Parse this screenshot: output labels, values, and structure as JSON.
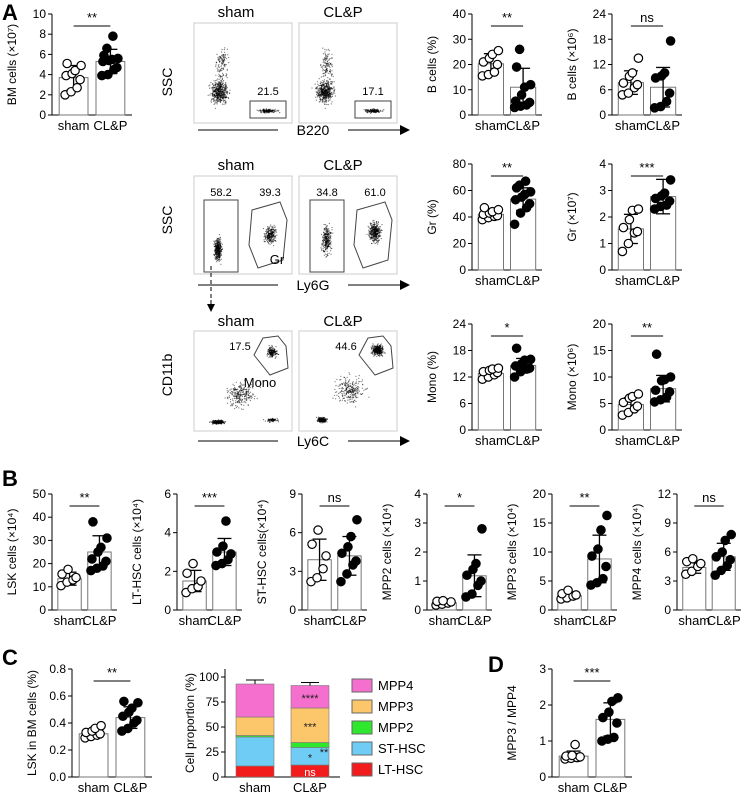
{
  "panels": {
    "A": "A",
    "B": "B",
    "C": "C",
    "D": "D"
  },
  "groups": [
    "sham",
    "CL&P"
  ],
  "flow": {
    "row1": {
      "ylabel": "SSC",
      "xlabel": "B220",
      "plots": [
        {
          "title": "sham",
          "gate_value": "21.5"
        },
        {
          "title": "CL&P",
          "gate_value": "17.1"
        }
      ]
    },
    "row2": {
      "ylabel": "SSC",
      "xlabel": "Ly6G",
      "gate_label": "Gr",
      "plots": [
        {
          "title": "sham",
          "left_value": "58.2",
          "right_value": "39.3"
        },
        {
          "title": "CL&P",
          "left_value": "34.8",
          "right_value": "61.0"
        }
      ]
    },
    "row3": {
      "ylabel": "CD11b",
      "xlabel": "Ly6C",
      "gate_label": "Mono",
      "plots": [
        {
          "title": "sham",
          "gate_value": "17.5"
        },
        {
          "title": "CL&P",
          "gate_value": "44.6"
        }
      ]
    }
  },
  "chart_data": [
    {
      "id": "bm_cells",
      "panel": "A",
      "type": "bar",
      "ylabel": "BM cells (×10⁷)",
      "ylim": [
        0,
        10
      ],
      "yticks": [
        0,
        2,
        4,
        6,
        8,
        10
      ],
      "categories": [
        "sham",
        "CL&P"
      ],
      "means": [
        3.7,
        5.3
      ],
      "sd": [
        1.2,
        1.2
      ],
      "sig": "**",
      "points": [
        [
          2.0,
          2.3,
          2.7,
          3.5,
          3.9,
          4.1,
          4.4,
          4.9,
          5.1
        ],
        [
          3.9,
          4.0,
          4.5,
          4.7,
          5.3,
          5.4,
          5.5,
          5.6,
          5.9,
          6.6,
          7.8
        ]
      ]
    },
    {
      "id": "b_cells_pct",
      "panel": "A",
      "type": "bar",
      "ylabel": "B cells (%)",
      "ylim": [
        0,
        40
      ],
      "yticks": [
        0,
        10,
        20,
        30,
        40
      ],
      "categories": [
        "sham",
        "CL&P"
      ],
      "means": [
        20.3,
        11.0
      ],
      "sd": [
        4.0,
        7.5
      ],
      "sig": "**",
      "points": [
        [
          15.5,
          16,
          17,
          20,
          21,
          22.5,
          24,
          25.5
        ],
        [
          3,
          3.5,
          4,
          5,
          5.5,
          8,
          11,
          12,
          19,
          26
        ]
      ]
    },
    {
      "id": "b_cells_abs",
      "panel": "A",
      "type": "bar",
      "ylabel": "B cells (×10⁶)",
      "ylim": [
        0,
        24
      ],
      "yticks": [
        0,
        6,
        12,
        18,
        24
      ],
      "categories": [
        "sham",
        "CL&P"
      ],
      "means": [
        7.7,
        6.6
      ],
      "sd": [
        2.8,
        4.7
      ],
      "sig": "ns",
      "points": [
        [
          4.8,
          5.2,
          6.5,
          7.2,
          7.6,
          9.2,
          10.0,
          13.5
        ],
        [
          1.7,
          2.0,
          3.2,
          5.2,
          8.8,
          9.3,
          10.0,
          17.6
        ]
      ]
    },
    {
      "id": "gr_pct",
      "panel": "A",
      "type": "bar",
      "ylabel": "Gr (%)",
      "ylim": [
        0,
        80
      ],
      "yticks": [
        0,
        20,
        40,
        60,
        80
      ],
      "categories": [
        "sham",
        "CL&P"
      ],
      "means": [
        42,
        53.5
      ],
      "sd": [
        2.5,
        8.5
      ],
      "sig": "**",
      "points": [
        [
          38,
          39.5,
          40.5,
          41,
          42,
          43,
          44,
          45.5,
          47
        ],
        [
          34.5,
          43,
          47,
          50,
          53,
          55,
          57,
          59,
          62,
          64,
          67
        ]
      ]
    },
    {
      "id": "gr_abs",
      "panel": "A",
      "type": "bar",
      "ylabel": "Gr (×10⁷)",
      "ylim": [
        0,
        4
      ],
      "yticks": [
        0,
        1,
        2,
        3,
        4
      ],
      "categories": [
        "sham",
        "CL&P"
      ],
      "means": [
        1.55,
        2.77
      ],
      "sd": [
        0.55,
        0.65
      ],
      "sig": "***",
      "points": [
        [
          0.7,
          1.0,
          1.4,
          1.45,
          1.6,
          1.9,
          2.25,
          2.3
        ],
        [
          2.3,
          2.4,
          2.45,
          2.6,
          2.7,
          2.8,
          2.9,
          3.4
        ]
      ]
    },
    {
      "id": "mono_pct",
      "panel": "A",
      "type": "bar",
      "ylabel": "Mono (%)",
      "ylim": [
        0,
        24
      ],
      "yticks": [
        0,
        6,
        12,
        18,
        24
      ],
      "categories": [
        "sham",
        "CL&P"
      ],
      "means": [
        12.8,
        14.6
      ],
      "sd": [
        0.8,
        1.6
      ],
      "sig": "*",
      "points": [
        [
          11.5,
          12,
          12.5,
          13,
          13.2,
          13.5,
          13.8,
          14
        ],
        [
          12,
          13.2,
          13.8,
          14,
          14.5,
          15,
          15.8,
          16,
          18.5
        ]
      ]
    },
    {
      "id": "mono_abs",
      "panel": "A",
      "type": "bar",
      "ylabel": "Mono (×10⁶)",
      "ylim": [
        0,
        20
      ],
      "yticks": [
        0,
        5,
        10,
        15,
        20
      ],
      "categories": [
        "sham",
        "CL&P"
      ],
      "means": [
        4.8,
        7.8
      ],
      "sd": [
        1.3,
        2.5
      ],
      "sig": "**",
      "points": [
        [
          2.8,
          3.3,
          4.0,
          4.5,
          5.2,
          6.0,
          6.3,
          6.8
        ],
        [
          5.3,
          5.7,
          6.2,
          7.2,
          7.5,
          9.3,
          9.5,
          10.0,
          14.3
        ]
      ]
    },
    {
      "id": "lsk_cells",
      "panel": "B",
      "type": "bar",
      "ylabel": "LSK cells (×10⁴)",
      "ylim": [
        0,
        50
      ],
      "yticks": [
        0,
        10,
        20,
        30,
        40,
        50
      ],
      "categories": [
        "sham",
        "CL&P"
      ],
      "means": [
        13.5,
        25.0
      ],
      "sd": [
        2.8,
        7.0
      ],
      "sig": "**",
      "points": [
        [
          10.5,
          12,
          13,
          14,
          15.5,
          17.5
        ],
        [
          17,
          18,
          19,
          21,
          22,
          25,
          27,
          31,
          38
        ]
      ]
    },
    {
      "id": "lthsc_cells",
      "panel": "B",
      "type": "bar",
      "ylabel": "LT-HSC cells (×10⁴)",
      "ylim": [
        0,
        6
      ],
      "yticks": [
        0,
        2,
        4,
        6
      ],
      "categories": [
        "sham",
        "CL&P"
      ],
      "means": [
        1.5,
        3.0
      ],
      "sd": [
        0.55,
        0.7
      ],
      "sig": "***",
      "points": [
        [
          0.9,
          1.1,
          1.2,
          1.5,
          1.9,
          2.4
        ],
        [
          2.3,
          2.4,
          2.6,
          2.9,
          3.0,
          3.3,
          4.6
        ]
      ]
    },
    {
      "id": "sthsc_cells",
      "panel": "B",
      "type": "bar",
      "ylabel": "ST-HSC cells(×10⁴)",
      "ylim": [
        0,
        9
      ],
      "yticks": [
        0,
        3,
        6,
        9
      ],
      "categories": [
        "sham",
        "CL&P"
      ],
      "means": [
        3.9,
        4.2
      ],
      "sd": [
        1.6,
        1.5
      ],
      "sig": "ns",
      "points": [
        [
          2.2,
          2.5,
          3.2,
          4.2,
          5.1,
          6.2
        ],
        [
          2.2,
          2.8,
          3.5,
          3.8,
          4.4,
          4.9,
          5.7,
          7.0
        ]
      ]
    },
    {
      "id": "mpp2_cells",
      "panel": "B",
      "type": "bar",
      "ylabel": "MPP2 cells (×10⁴)",
      "ylim": [
        0,
        4
      ],
      "yticks": [
        0,
        1,
        2,
        3,
        4
      ],
      "categories": [
        "sham",
        "CL&P"
      ],
      "means": [
        0.25,
        1.18
      ],
      "sd": [
        0.06,
        0.72
      ],
      "sig": "*",
      "points": [
        [
          0.17,
          0.2,
          0.24,
          0.28,
          0.3,
          0.32
        ],
        [
          0.45,
          0.55,
          0.85,
          1.0,
          1.2,
          1.4,
          1.6,
          2.8
        ]
      ]
    },
    {
      "id": "mpp3_cells",
      "panel": "B",
      "type": "bar",
      "ylabel": "MPP3 cells (×10⁴)",
      "ylim": [
        0,
        20
      ],
      "yticks": [
        0,
        5,
        10,
        15,
        20
      ],
      "categories": [
        "sham",
        "CL&P"
      ],
      "means": [
        2.5,
        8.8
      ],
      "sd": [
        0.5,
        4.1
      ],
      "sig": "**",
      "points": [
        [
          1.9,
          2.1,
          2.4,
          2.6,
          2.8,
          3.4
        ],
        [
          4.3,
          4.7,
          5.4,
          7.5,
          9.3,
          10.5,
          13.8,
          16.3
        ]
      ]
    },
    {
      "id": "mpp4_cells",
      "panel": "B",
      "type": "bar",
      "ylabel": "MPP4 cells (×10⁴)",
      "ylim": [
        0,
        12
      ],
      "yticks": [
        0,
        3,
        6,
        9,
        12
      ],
      "categories": [
        "sham",
        "CL&P"
      ],
      "means": [
        4.4,
        5.5
      ],
      "sd": [
        0.6,
        1.4
      ],
      "sig": "ns",
      "points": [
        [
          3.7,
          4.0,
          4.5,
          4.8,
          5.0,
          5.3
        ],
        [
          3.6,
          4.1,
          4.6,
          5.2,
          5.5,
          6.0,
          7.2,
          7.8
        ]
      ]
    },
    {
      "id": "lsk_in_bm",
      "panel": "C",
      "type": "bar",
      "ylabel": "LSK in BM cells (%)",
      "ylim": [
        0,
        0.8
      ],
      "yticks": [
        "0.0",
        "0.2",
        "0.4",
        "0.6",
        "0.8"
      ],
      "categories": [
        "sham",
        "CL&P"
      ],
      "means": [
        0.32,
        0.44
      ],
      "sd": [
        0.03,
        0.08
      ],
      "sig": "**",
      "points": [
        [
          0.29,
          0.3,
          0.31,
          0.32,
          0.33,
          0.34,
          0.36,
          0.38
        ],
        [
          0.34,
          0.36,
          0.4,
          0.42,
          0.45,
          0.48,
          0.51,
          0.55,
          0.56
        ]
      ]
    },
    {
      "id": "cell_proportion",
      "panel": "C",
      "type": "stacked_bar",
      "ylabel": "Cell proportion (%)",
      "ylim": [
        0,
        100
      ],
      "yticks": [
        0,
        25,
        50,
        75,
        100
      ],
      "categories": [
        "sham",
        "CL&P"
      ],
      "series": [
        {
          "name": "LT-HSC",
          "color": "#f21c1c",
          "values": [
            11,
            12
          ],
          "err": [
            2,
            1.5
          ],
          "sig": [
            "",
            "ns"
          ]
        },
        {
          "name": "ST-HSC",
          "color": "#6fcdf5",
          "values": [
            29,
            17.5
          ],
          "err": [
            2,
            2
          ],
          "sig": [
            "",
            "*"
          ]
        },
        {
          "name": "MPP2",
          "color": "#2ee82e",
          "values": [
            1.5,
            5
          ],
          "err": [
            1,
            2
          ],
          "sig": [
            "",
            "**"
          ]
        },
        {
          "name": "MPP3",
          "color": "#fcc66a",
          "values": [
            18.5,
            34.5
          ],
          "err": [
            5,
            8
          ],
          "sig": [
            "",
            "***"
          ]
        },
        {
          "name": "MPP4",
          "color": "#f56fcf",
          "values": [
            33,
            22.5
          ],
          "err": [
            4,
            3
          ],
          "sig": [
            "",
            "****"
          ]
        }
      ],
      "legend_order": [
        "MPP4",
        "MPP3",
        "MPP2",
        "ST-HSC",
        "LT-HSC"
      ]
    },
    {
      "id": "mpp3_mpp4_ratio",
      "panel": "D",
      "type": "bar",
      "ylabel": "MPP3 / MPP4",
      "ylim": [
        0,
        3
      ],
      "yticks": [
        0,
        1,
        2,
        3
      ],
      "categories": [
        "sham",
        "CL&P"
      ],
      "means": [
        0.58,
        1.6
      ],
      "sd": [
        0.14,
        0.46
      ],
      "sig": "***",
      "points": [
        [
          0.5,
          0.52,
          0.54,
          0.56,
          0.58,
          0.6,
          0.9
        ],
        [
          1.0,
          1.05,
          1.1,
          1.5,
          1.65,
          1.8,
          2.1,
          2.2
        ]
      ]
    }
  ]
}
